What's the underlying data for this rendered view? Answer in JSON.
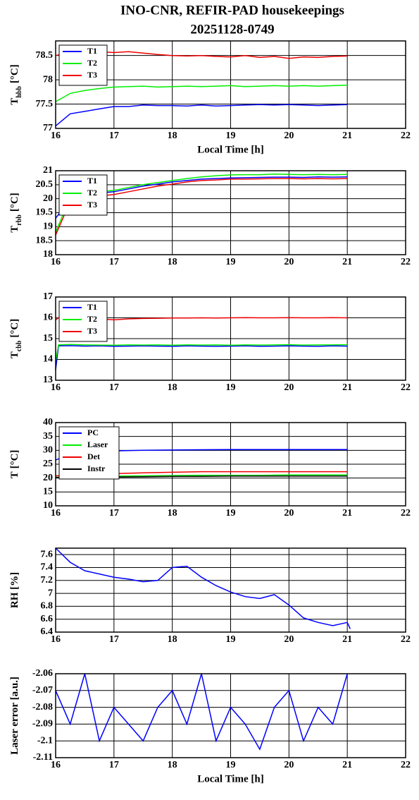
{
  "title": "INO-CNR, REFIR-PAD housekeepings",
  "subtitle": "20251128-0749",
  "chart_data": [
    {
      "type": "line",
      "ylabel": "T",
      "ylabel_sub": "hbb",
      "ylabel_unit": "[°C]",
      "xlabel": "Local Time [h]",
      "x": [
        16,
        16.25,
        16.5,
        16.75,
        17,
        17.25,
        17.5,
        17.75,
        18,
        18.25,
        18.5,
        18.75,
        19,
        19.25,
        19.5,
        19.75,
        20,
        20.25,
        20.5,
        20.75,
        21
      ],
      "series": [
        {
          "name": "T1",
          "color": "#0000ff",
          "values": [
            77.05,
            77.3,
            77.35,
            77.4,
            77.45,
            77.45,
            77.48,
            77.47,
            77.47,
            77.46,
            77.48,
            77.46,
            77.47,
            77.48,
            77.49,
            77.48,
            77.49,
            77.48,
            77.47,
            77.48,
            77.49
          ]
        },
        {
          "name": "T2",
          "color": "#00ee00",
          "values": [
            77.55,
            77.72,
            77.78,
            77.82,
            77.85,
            77.86,
            77.87,
            77.85,
            77.86,
            77.87,
            77.86,
            77.87,
            77.88,
            77.86,
            77.87,
            77.88,
            77.87,
            77.88,
            77.87,
            77.88,
            77.89
          ]
        },
        {
          "name": "T3",
          "color": "#ee0000",
          "values": [
            78.5,
            78.56,
            78.57,
            78.58,
            78.56,
            78.58,
            78.55,
            78.52,
            78.5,
            78.49,
            78.5,
            78.48,
            78.47,
            78.5,
            78.46,
            78.48,
            78.44,
            78.47,
            78.46,
            78.48,
            78.49
          ]
        }
      ],
      "xlim": [
        16,
        22
      ],
      "xticks": [
        16,
        17,
        18,
        19,
        20,
        21,
        22
      ],
      "ylim": [
        77,
        78.8
      ],
      "yticks": [
        77,
        77.5,
        78,
        78.5
      ],
      "grid": true,
      "legend": "upper left"
    },
    {
      "type": "line",
      "ylabel": "T",
      "ylabel_sub": "rbb",
      "ylabel_unit": "[°C]",
      "x": [
        16,
        16.25,
        16.5,
        16.75,
        17,
        17.25,
        17.5,
        17.75,
        18,
        18.25,
        18.5,
        18.75,
        19,
        19.25,
        19.5,
        19.75,
        20,
        20.25,
        20.5,
        20.75,
        21
      ],
      "series": [
        {
          "name": "T1",
          "color": "#0000ff",
          "values": [
            19.3,
            20.0,
            20.1,
            20.2,
            20.25,
            20.35,
            20.45,
            20.52,
            20.6,
            20.65,
            20.7,
            20.72,
            20.74,
            20.75,
            20.76,
            20.77,
            20.77,
            20.76,
            20.78,
            20.77,
            20.78
          ]
        },
        {
          "name": "T2",
          "color": "#00ee00",
          "values": [
            18.8,
            20.05,
            20.15,
            20.25,
            20.3,
            20.4,
            20.5,
            20.58,
            20.65,
            20.72,
            20.78,
            20.82,
            20.85,
            20.86,
            20.86,
            20.88,
            20.87,
            20.86,
            20.87,
            20.86,
            20.87
          ]
        },
        {
          "name": "T3",
          "color": "#ee0000",
          "values": [
            18.7,
            19.9,
            20.05,
            20.1,
            20.15,
            20.25,
            20.35,
            20.45,
            20.52,
            20.6,
            20.65,
            20.67,
            20.7,
            20.7,
            20.71,
            20.72,
            20.72,
            20.71,
            20.72,
            20.71,
            20.72
          ]
        }
      ],
      "xlim": [
        16,
        22
      ],
      "xticks": [
        16,
        17,
        18,
        19,
        20,
        21,
        22
      ],
      "ylim": [
        18,
        21
      ],
      "yticks": [
        18,
        18.5,
        19,
        19.5,
        20,
        20.5,
        21
      ],
      "grid": true,
      "legend": "upper left"
    },
    {
      "type": "line",
      "ylabel": "T",
      "ylabel_sub": "cbb",
      "ylabel_unit": "[°C]",
      "x": [
        16,
        16.05,
        16.25,
        16.5,
        16.75,
        17,
        17.25,
        17.5,
        17.75,
        18,
        18.25,
        18.5,
        18.75,
        19,
        19.25,
        19.5,
        19.75,
        20,
        20.25,
        20.5,
        20.75,
        21
      ],
      "series": [
        {
          "name": "T1",
          "color": "#0000ff",
          "values": [
            13.5,
            14.65,
            14.66,
            14.64,
            14.65,
            14.63,
            14.64,
            14.65,
            14.64,
            14.63,
            14.65,
            14.64,
            14.63,
            14.64,
            14.65,
            14.63,
            14.64,
            14.65,
            14.64,
            14.63,
            14.65,
            14.64
          ]
        },
        {
          "name": "T2",
          "color": "#00ee00",
          "values": [
            13.9,
            14.7,
            14.72,
            14.7,
            14.69,
            14.68,
            14.7,
            14.69,
            14.7,
            14.68,
            14.7,
            14.69,
            14.7,
            14.68,
            14.7,
            14.69,
            14.7,
            14.71,
            14.69,
            14.7,
            14.7,
            14.71
          ]
        },
        {
          "name": "T3",
          "color": "#ee0000",
          "values": [
            15.9,
            16.0,
            15.98,
            15.97,
            15.95,
            15.9,
            15.95,
            15.97,
            15.98,
            15.99,
            15.99,
            16.0,
            15.99,
            16.0,
            16.01,
            16.0,
            16.0,
            16.01,
            16.0,
            16.0,
            16.01,
            16.0
          ]
        }
      ],
      "xlim": [
        16,
        22
      ],
      "xticks": [
        16,
        17,
        18,
        19,
        20,
        21,
        22
      ],
      "ylim": [
        13,
        17
      ],
      "yticks": [
        13,
        14,
        15,
        16,
        17
      ],
      "grid": true,
      "legend": "upper left"
    },
    {
      "type": "line",
      "ylabel": "T",
      "ylabel_unit": "[°C]",
      "x": [
        16,
        16.25,
        16.5,
        16.75,
        17,
        17.5,
        18,
        18.5,
        19,
        19.5,
        20,
        20.5,
        21
      ],
      "series": [
        {
          "name": "PC",
          "color": "#0000ff",
          "values": [
            26.5,
            28.5,
            29.3,
            29.6,
            29.8,
            30.0,
            30.1,
            30.2,
            30.3,
            30.3,
            30.3,
            30.3,
            30.3
          ]
        },
        {
          "name": "Laser",
          "color": "#00ee00",
          "values": [
            20.3,
            20.4,
            20.5,
            20.6,
            20.7,
            20.8,
            20.9,
            21.0,
            21.0,
            21.0,
            21.1,
            21.1,
            21.1
          ]
        },
        {
          "name": "Det",
          "color": "#ee0000",
          "values": [
            20.8,
            21.0,
            21.2,
            21.4,
            21.6,
            21.9,
            22.1,
            22.3,
            22.3,
            22.3,
            22.3,
            22.3,
            22.3
          ]
        },
        {
          "name": "Instr",
          "color": "#000000",
          "values": [
            20.2,
            20.3,
            20.3,
            20.4,
            20.4,
            20.5,
            20.6,
            20.6,
            20.7,
            20.7,
            20.7,
            20.7,
            20.7
          ]
        }
      ],
      "xlim": [
        16,
        22
      ],
      "xticks": [
        16,
        17,
        18,
        19,
        20,
        21,
        22
      ],
      "ylim": [
        10,
        40
      ],
      "yticks": [
        10,
        15,
        20,
        25,
        30,
        35,
        40
      ],
      "grid": true,
      "legend": "upper left"
    },
    {
      "type": "line",
      "ylabel": "RH [%]",
      "x": [
        16,
        16.25,
        16.5,
        16.75,
        17,
        17.25,
        17.5,
        17.75,
        18,
        18.25,
        18.5,
        18.75,
        19,
        19.25,
        19.5,
        19.75,
        20,
        20.25,
        20.5,
        20.75,
        21,
        21.05
      ],
      "series": [
        {
          "name": "RH",
          "color": "#0000ff",
          "values": [
            7.7,
            7.48,
            7.35,
            7.3,
            7.25,
            7.22,
            7.18,
            7.2,
            7.4,
            7.42,
            7.25,
            7.12,
            7.02,
            6.95,
            6.92,
            6.98,
            6.82,
            6.62,
            6.55,
            6.5,
            6.55,
            6.45
          ]
        }
      ],
      "xlim": [
        16,
        22
      ],
      "xticks": [
        16,
        17,
        18,
        19,
        20,
        21,
        22
      ],
      "ylim": [
        6.4,
        7.7
      ],
      "yticks": [
        6.4,
        6.6,
        6.8,
        7,
        7.2,
        7.4,
        7.6
      ],
      "grid": true
    },
    {
      "type": "line",
      "ylabel": "Laser error [a.u.]",
      "xlabel": "Local Time [h]",
      "x": [
        16,
        16.25,
        16.5,
        16.75,
        17,
        17.25,
        17.5,
        17.75,
        18,
        18.25,
        18.5,
        18.75,
        19,
        19.25,
        19.5,
        19.75,
        20,
        20.25,
        20.5,
        20.75,
        21
      ],
      "series": [
        {
          "name": "Laser error",
          "color": "#0000ff",
          "values": [
            -2.07,
            -2.09,
            -2.06,
            -2.1,
            -2.08,
            -2.09,
            -2.1,
            -2.08,
            -2.07,
            -2.09,
            -2.06,
            -2.1,
            -2.08,
            -2.09,
            -2.105,
            -2.08,
            -2.07,
            -2.1,
            -2.08,
            -2.09,
            -2.06
          ]
        }
      ],
      "xlim": [
        16,
        22
      ],
      "xticks": [
        16,
        17,
        18,
        19,
        20,
        21,
        22
      ],
      "ylim": [
        -2.11,
        -2.06
      ],
      "yticks": [
        -2.11,
        -2.1,
        -2.09,
        -2.08,
        -2.07,
        -2.06
      ],
      "grid": true
    }
  ]
}
